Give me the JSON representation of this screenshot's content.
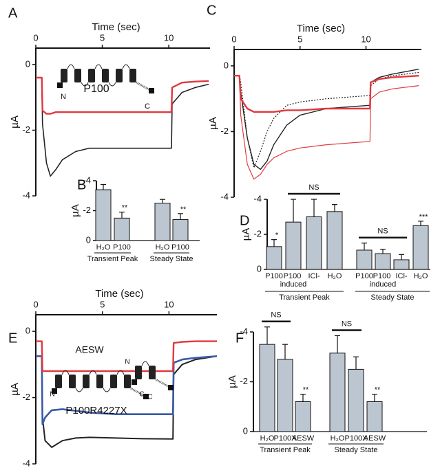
{
  "chart_data": [
    {
      "type": "line",
      "panel": "A",
      "xlabel": "Time (sec)",
      "ylabel": "µA",
      "xlim": [
        0,
        13.1
      ],
      "ylim": [
        -4,
        0.5
      ],
      "xticks": [
        0,
        5,
        10
      ],
      "yticks": [
        -4,
        -2,
        0
      ],
      "annotations": [
        "P100",
        "N",
        "C"
      ],
      "x": [
        0,
        0.45,
        0.5,
        0.8,
        1.1,
        1.5,
        2,
        3,
        4,
        6,
        8,
        10.2,
        10.25,
        11,
        12,
        13
      ],
      "series": [
        {
          "color": "#222222",
          "line_width": 1.6,
          "dash": false,
          "values": [
            -0.4,
            -0.4,
            -1.8,
            -3.0,
            -3.4,
            -3.2,
            -2.9,
            -2.65,
            -2.55,
            -2.55,
            -2.55,
            -2.55,
            -1.2,
            -0.85,
            -0.7,
            -0.6
          ]
        },
        {
          "color": "#e0393e",
          "line_width": 2.4,
          "dash": false,
          "values": [
            -0.4,
            -0.4,
            -1.4,
            -1.5,
            -1.5,
            -1.45,
            -1.45,
            -1.45,
            -1.45,
            -1.45,
            -1.45,
            -1.45,
            -0.7,
            -0.55,
            -0.52,
            -0.5
          ]
        }
      ]
    },
    {
      "type": "bar",
      "panel": "B",
      "ylabel": "µA",
      "ylim": [
        0,
        -4
      ],
      "yticks": [
        -4,
        -2,
        0
      ],
      "categories": [
        "H₂O",
        "P100",
        "H₂O",
        "P100"
      ],
      "values": [
        -3.4,
        -1.5,
        -2.5,
        -1.4
      ],
      "errors": [
        0.35,
        0.4,
        0.25,
        0.4
      ],
      "significance": [
        null,
        "**",
        null,
        "**"
      ],
      "group_labels": [
        "Transient Peak",
        "Steady State"
      ],
      "brackets": [],
      "color": "#bcc6d0"
    },
    {
      "type": "line",
      "panel": "C",
      "xlabel": "Time (sec)",
      "ylabel": "µA",
      "xlim": [
        0,
        14.2
      ],
      "ylim": [
        -4,
        0.5
      ],
      "xticks": [
        0,
        5,
        10
      ],
      "yticks": [
        -4,
        -2,
        0
      ],
      "annotations": [],
      "x": [
        0,
        0.4,
        0.5,
        1,
        1.5,
        2,
        2.5,
        3,
        4,
        5,
        7,
        10.3,
        10.35,
        11,
        12,
        14
      ],
      "series": [
        {
          "color": "#222222",
          "line_width": 1.4,
          "dash": false,
          "values": [
            -0.3,
            -0.3,
            -0.8,
            -2.2,
            -3.0,
            -3.15,
            -2.9,
            -2.4,
            -1.8,
            -1.5,
            -1.3,
            -1.2,
            -0.5,
            -0.35,
            -0.25,
            -0.1
          ]
        },
        {
          "color": "#222222",
          "line_width": 1.2,
          "dash": true,
          "values": [
            -0.3,
            -0.3,
            -0.5,
            -2.2,
            -3.1,
            -2.6,
            -2.0,
            -1.6,
            -1.2,
            -1.1,
            -1.0,
            -0.9,
            -0.6,
            -0.4,
            -0.3,
            -0.2
          ]
        },
        {
          "color": "#e0393e",
          "line_width": 1.2,
          "dash": false,
          "values": [
            -0.3,
            -0.3,
            -1.5,
            -3.0,
            -3.45,
            -3.3,
            -3.0,
            -2.8,
            -2.6,
            -2.5,
            -2.4,
            -2.3,
            -1.0,
            -0.8,
            -0.7,
            -0.6
          ]
        },
        {
          "color": "#e0393e",
          "line_width": 2.4,
          "dash": false,
          "values": [
            -0.3,
            -0.3,
            -1.0,
            -1.3,
            -1.4,
            -1.4,
            -1.4,
            -1.4,
            -1.35,
            -1.35,
            -1.3,
            -1.3,
            -0.5,
            -0.4,
            -0.35,
            -0.3
          ]
        }
      ]
    },
    {
      "type": "bar",
      "panel": "D",
      "ylabel": "µA",
      "ylim": [
        0,
        -4
      ],
      "yticks": [
        -4,
        -2,
        0
      ],
      "categories": [
        "P100",
        "P100 induced",
        "ICl-",
        "H₂O",
        "P100",
        "P100 induced",
        "ICl-",
        "H₂O"
      ],
      "values": [
        -1.3,
        -2.7,
        -3.0,
        -3.3,
        -1.1,
        -0.9,
        -0.55,
        -2.5
      ],
      "errors": [
        0.4,
        1.3,
        1.0,
        0.4,
        0.4,
        0.25,
        0.3,
        0.25
      ],
      "significance": [
        "*",
        null,
        null,
        null,
        null,
        null,
        null,
        "***"
      ],
      "group_labels": [
        "Transient Peak",
        "Steady State"
      ],
      "brackets": [
        "NS",
        "NS"
      ],
      "color": "#bcc6d0"
    },
    {
      "type": "line",
      "panel": "E",
      "xlabel": "Time (sec)",
      "ylabel": "µA",
      "xlim": [
        0,
        13.6
      ],
      "ylim": [
        -4,
        0.5
      ],
      "xticks": [
        0,
        5,
        10
      ],
      "yticks": [
        -4,
        -2,
        0
      ],
      "annotations": [
        "AESW",
        "N",
        "C",
        "P100R4227X",
        "N",
        "C"
      ],
      "x": [
        0,
        0.45,
        0.5,
        0.7,
        1.2,
        2,
        3,
        4,
        6,
        8,
        10.3,
        10.35,
        11,
        12,
        13.6
      ],
      "series": [
        {
          "color": "#222222",
          "line_width": 2,
          "dash": false,
          "values": [
            -0.75,
            -0.75,
            -2.6,
            -3.3,
            -3.5,
            -3.3,
            -3.22,
            -3.2,
            -3.22,
            -3.24,
            -3.25,
            -1.3,
            -1.0,
            -0.85,
            -0.75
          ]
        },
        {
          "color": "#3b5ba5",
          "line_width": 2.6,
          "dash": false,
          "values": [
            -0.75,
            -0.75,
            -2.8,
            -2.6,
            -2.38,
            -2.35,
            -2.4,
            -2.45,
            -2.5,
            -2.5,
            -2.5,
            -0.95,
            -0.85,
            -0.8,
            -0.75
          ]
        },
        {
          "color": "#e0393e",
          "line_width": 2.4,
          "dash": false,
          "values": [
            -0.3,
            -0.3,
            -1.2,
            -1.2,
            -1.2,
            -1.2,
            -1.2,
            -1.2,
            -1.2,
            -1.2,
            -1.2,
            -0.35,
            -0.32,
            -0.3,
            -0.3
          ]
        }
      ]
    },
    {
      "type": "bar",
      "panel": "F",
      "ylabel": "µA",
      "ylim": [
        0,
        -4
      ],
      "yticks": [
        -4,
        -2,
        0
      ],
      "categories": [
        "H₂O",
        "P100X",
        "AESW",
        "H₂O",
        "P100X",
        "AESW"
      ],
      "values": [
        -3.5,
        -2.9,
        -1.2,
        -3.15,
        -2.5,
        -1.2
      ],
      "errors": [
        0.7,
        0.6,
        0.3,
        0.7,
        0.5,
        0.3
      ],
      "significance": [
        null,
        null,
        "**",
        null,
        null,
        "**"
      ],
      "group_labels": [
        "Transient Peak",
        "Steady State"
      ],
      "brackets": [
        "NS",
        "NS"
      ],
      "color": "#bcc6d0"
    }
  ]
}
